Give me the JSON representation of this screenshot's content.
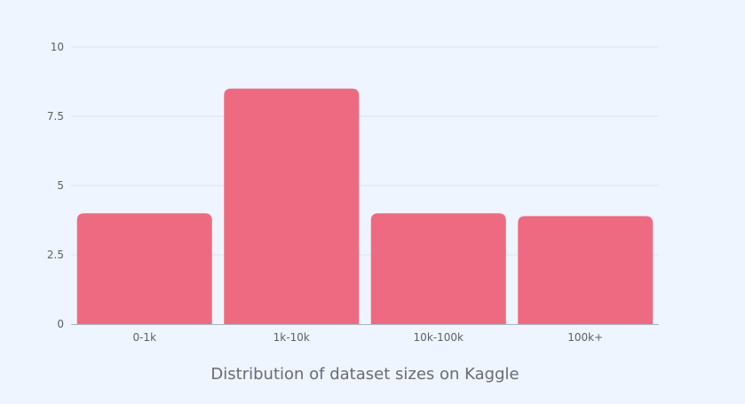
{
  "chart_data": {
    "type": "bar",
    "categories": [
      "0-1k",
      "1k-10k",
      "10k-100k",
      "100k+"
    ],
    "values": [
      4,
      8.5,
      4,
      3.9
    ],
    "ylim": [
      0,
      10
    ],
    "yticks": [
      0,
      2.5,
      5,
      7.5,
      10
    ],
    "ytick_labels": [
      "0",
      "2.5",
      "5",
      "7.5",
      "10"
    ],
    "xlabel": "Distribution of dataset sizes on Kaggle",
    "ylabel": "",
    "title": "",
    "grid": true,
    "legend": "none",
    "bar_color": "#ee6a81",
    "grid_color": "#d9e2ee",
    "axis_color": "#a9b3c2",
    "background": "#eef5ff"
  }
}
